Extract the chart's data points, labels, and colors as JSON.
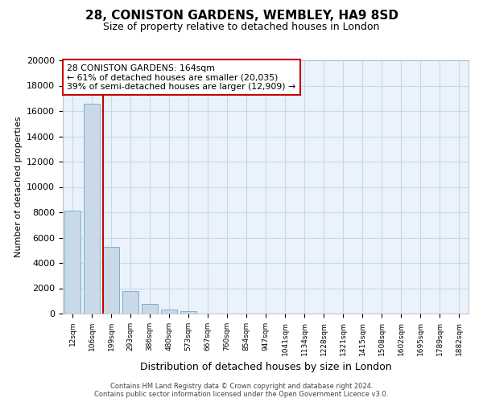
{
  "title": "28, CONISTON GARDENS, WEMBLEY, HA9 8SD",
  "subtitle": "Size of property relative to detached houses in London",
  "xlabel": "Distribution of detached houses by size in London",
  "ylabel": "Number of detached properties",
  "categories": [
    "12sqm",
    "106sqm",
    "199sqm",
    "293sqm",
    "386sqm",
    "480sqm",
    "573sqm",
    "667sqm",
    "760sqm",
    "854sqm",
    "947sqm",
    "1041sqm",
    "1134sqm",
    "1228sqm",
    "1321sqm",
    "1415sqm",
    "1508sqm",
    "1602sqm",
    "1695sqm",
    "1789sqm",
    "1882sqm"
  ],
  "values": [
    8100,
    16550,
    5300,
    1800,
    750,
    300,
    200,
    0,
    0,
    0,
    0,
    0,
    0,
    0,
    0,
    0,
    0,
    0,
    0,
    0,
    0
  ],
  "bar_color": "#c9d9e8",
  "bar_edge_color": "#7fafd0",
  "property_line_x": 1.58,
  "property_line_color": "#cc0000",
  "ylim": [
    0,
    20000
  ],
  "yticks": [
    0,
    2000,
    4000,
    6000,
    8000,
    10000,
    12000,
    14000,
    16000,
    18000,
    20000
  ],
  "annotation_title": "28 CONISTON GARDENS: 164sqm",
  "annotation_line1": "← 61% of detached houses are smaller (20,035)",
  "annotation_line2": "39% of semi-detached houses are larger (12,909) →",
  "annotation_box_color": "#ffffff",
  "annotation_box_edge": "#cc0000",
  "footer_line1": "Contains HM Land Registry data © Crown copyright and database right 2024.",
  "footer_line2": "Contains public sector information licensed under the Open Government Licence v3.0.",
  "grid_color": "#c8d8e8",
  "background_color": "#eaf2fb"
}
